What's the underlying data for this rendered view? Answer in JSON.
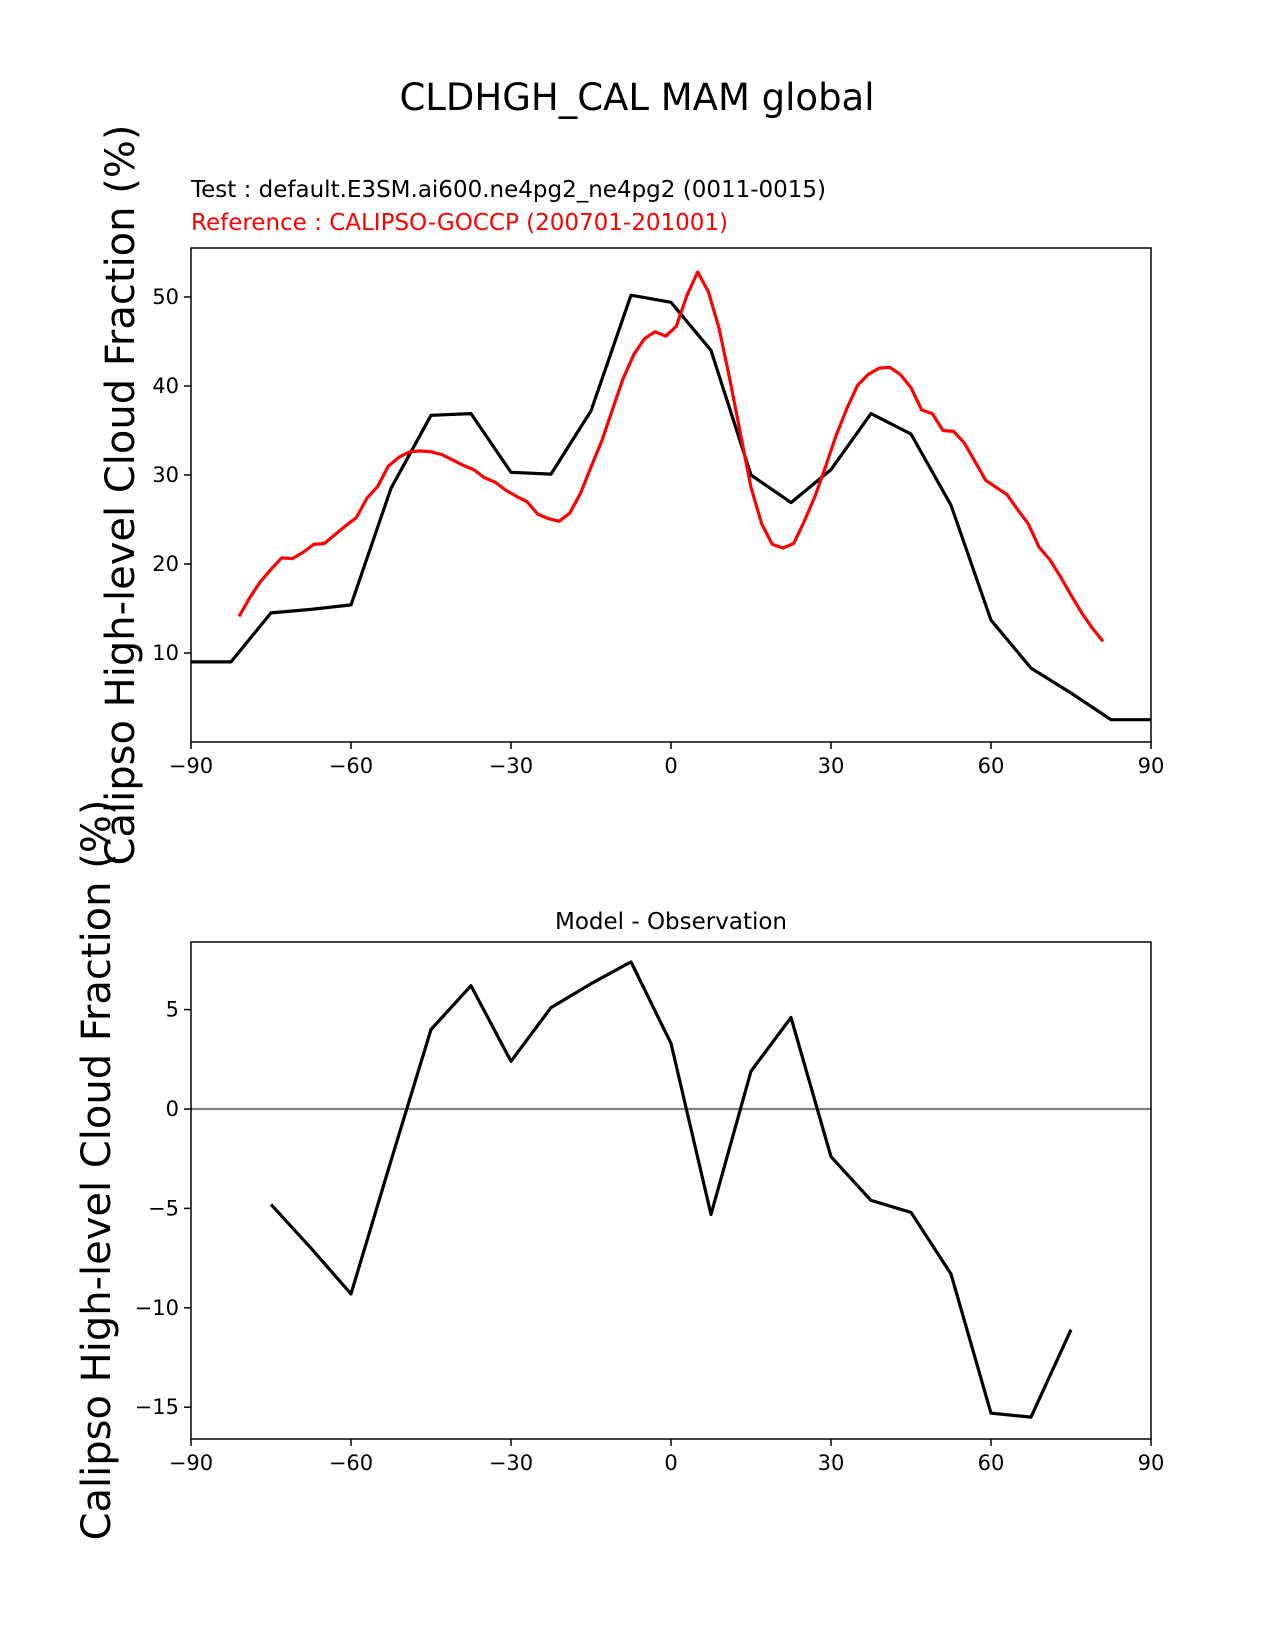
{
  "figure": {
    "title": "CLDHGH_CAL MAM global"
  },
  "colors": {
    "test": "#000000",
    "reference": "#ff0000",
    "zero_line": "#808080"
  },
  "chart_data": [
    {
      "type": "line",
      "test_label": "Test : default.E3SM.ai600.ne4pg2_ne4pg2 (0011-0015)",
      "reference_label": "Reference : CALIPSO-GOCCP (200701-201001)",
      "ylabel": "Calipso High-level Cloud Fraction (%)",
      "xlim": [
        -90,
        90
      ],
      "ylim": [
        0,
        55.5
      ],
      "xticks": [
        "−90",
        "−60",
        "−30",
        "0",
        "30",
        "60",
        "90"
      ],
      "xtick_values": [
        -90,
        -60,
        -30,
        0,
        30,
        60,
        90
      ],
      "yticks": [
        "10",
        "20",
        "30",
        "40",
        "50"
      ],
      "ytick_values": [
        10,
        20,
        30,
        40,
        50
      ],
      "grid": false,
      "series": [
        {
          "color": "#000000",
          "x": [
            -90,
            -82.5,
            -75,
            -67.5,
            -60,
            -52.5,
            -45,
            -37.5,
            -30,
            -22.5,
            -15,
            -7.5,
            0,
            7.5,
            15,
            22.5,
            30,
            37.5,
            45,
            52.5,
            60,
            67.5,
            75,
            82.5,
            90
          ],
          "y": [
            9.0,
            9.0,
            14.5,
            14.9,
            15.4,
            28.5,
            36.7,
            36.9,
            30.3,
            30.1,
            37.2,
            50.2,
            49.4,
            44.0,
            30.0,
            26.9,
            30.6,
            36.9,
            34.6,
            26.6,
            13.7,
            8.3,
            5.5,
            2.5,
            2.5
          ]
        },
        {
          "color": "#ff0000",
          "x": [
            -81,
            -79,
            -77,
            -75,
            -73,
            -71,
            -69,
            -67,
            -65,
            -63,
            -61,
            -59,
            -57,
            -55,
            -53,
            -51,
            -49,
            -47,
            -45,
            -43,
            -41,
            -39,
            -37,
            -35,
            -33,
            -31,
            -29,
            -27,
            -25,
            -23,
            -21,
            -19,
            -17,
            -15,
            -13,
            -11,
            -9,
            -7,
            -5,
            -3,
            -1,
            1,
            3,
            5,
            7,
            9,
            11,
            13,
            15,
            17,
            19,
            21,
            23,
            25,
            27,
            29,
            31,
            33,
            35,
            37,
            39,
            41,
            43,
            45,
            47,
            49,
            51,
            53,
            55,
            57,
            59,
            61,
            63,
            65,
            67,
            69,
            71,
            73,
            75,
            77,
            79,
            81
          ],
          "y": [
            14.1,
            16.2,
            18.0,
            19.4,
            20.7,
            20.6,
            21.3,
            22.2,
            22.3,
            23.3,
            24.3,
            25.2,
            27.4,
            28.7,
            31.0,
            32.0,
            32.6,
            32.7,
            32.6,
            32.3,
            31.7,
            31.1,
            30.6,
            29.7,
            29.2,
            28.3,
            27.6,
            27.0,
            25.6,
            25.1,
            24.8,
            25.7,
            27.9,
            30.9,
            33.8,
            37.3,
            40.8,
            43.5,
            45.3,
            46.1,
            45.6,
            46.7,
            50.2,
            52.8,
            50.6,
            46.5,
            40.8,
            34.7,
            28.6,
            24.5,
            22.2,
            21.8,
            22.3,
            24.8,
            27.6,
            31.0,
            34.5,
            37.5,
            40.1,
            41.3,
            42.0,
            42.1,
            41.3,
            39.8,
            37.3,
            36.9,
            35.0,
            34.9,
            33.6,
            31.5,
            29.4,
            28.6,
            27.8,
            26.1,
            24.5,
            21.9,
            20.5,
            18.6,
            16.5,
            14.5,
            12.8,
            11.3
          ]
        }
      ]
    },
    {
      "type": "line",
      "title": "Model - Observation",
      "ylabel": "Calipso High-level Cloud Fraction (%)",
      "xlim": [
        -90,
        90
      ],
      "ylim": [
        -16.6,
        8.4
      ],
      "xticks": [
        "−90",
        "−60",
        "−30",
        "0",
        "30",
        "60",
        "90"
      ],
      "xtick_values": [
        -90,
        -60,
        -30,
        0,
        30,
        60,
        90
      ],
      "yticks": [
        "−15",
        "−10",
        "−5",
        "0",
        "5"
      ],
      "ytick_values": [
        -15,
        -10,
        -5,
        0,
        5
      ],
      "grid": false,
      "zero_line": 0,
      "series": [
        {
          "color": "#000000",
          "x": [
            -75,
            -67.5,
            -60,
            -52.5,
            -45,
            -37.5,
            -30,
            -22.5,
            -15,
            -7.5,
            0,
            7.5,
            15,
            22.5,
            30,
            37.5,
            45,
            52.5,
            60,
            67.5,
            75
          ],
          "y": [
            -4.8,
            -7.0,
            -9.3,
            -2.6,
            4.0,
            6.2,
            2.4,
            5.1,
            6.3,
            7.4,
            3.3,
            -5.3,
            1.9,
            4.6,
            -2.4,
            -4.6,
            -5.2,
            -8.3,
            -15.3,
            -15.5,
            -11.1
          ]
        }
      ]
    }
  ]
}
